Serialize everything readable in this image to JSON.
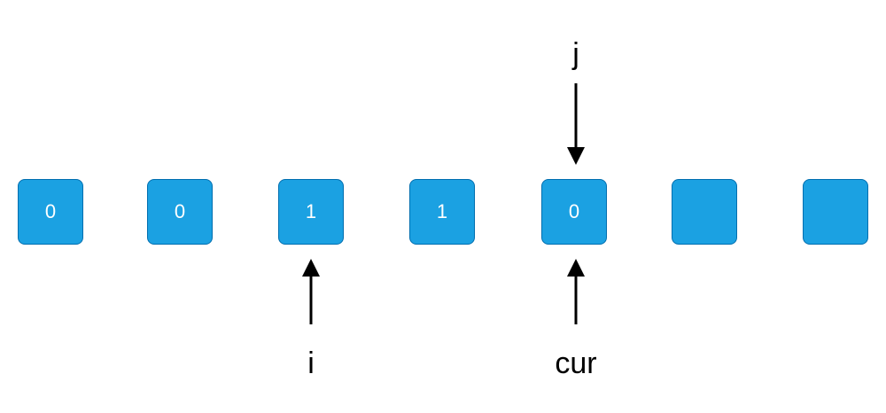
{
  "cells": [
    {
      "value": "0"
    },
    {
      "value": "0"
    },
    {
      "value": "1"
    },
    {
      "value": "1"
    },
    {
      "value": "0"
    },
    {
      "value": ""
    },
    {
      "value": ""
    }
  ],
  "pointers": {
    "j": {
      "label": "j"
    },
    "i": {
      "label": "i"
    },
    "cur": {
      "label": "cur"
    }
  },
  "colors": {
    "cell_fill": "#1ba1e2",
    "cell_border": "#006eaf",
    "cell_text": "#ffffff",
    "arrow": "#000000"
  }
}
